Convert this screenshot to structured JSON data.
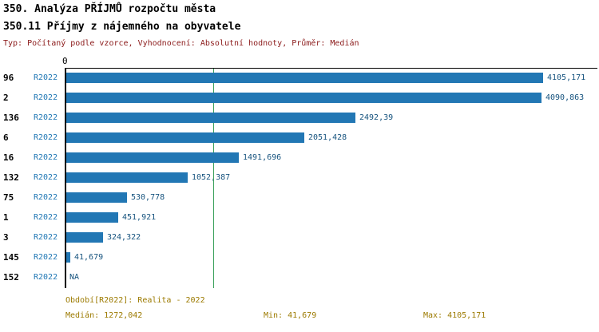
{
  "header": {
    "title1": "350. Analýza PŘÍJMŮ rozpočtu města",
    "title2": "350.11 Příjmy z nájemného na obyvatele",
    "meta": "Typ: Počítaný podle vzorce, Vyhodnocení: Absolutní hodnoty, Průměr: Medián"
  },
  "chart_data": {
    "type": "bar",
    "orientation": "horizontal",
    "title": "350.11 Příjmy z nájemného na obyvatele",
    "axis_zero_label": "0",
    "series_label": "R2022",
    "categories": [
      "96",
      "2",
      "136",
      "6",
      "16",
      "132",
      "75",
      "1",
      "3",
      "145",
      "152"
    ],
    "values": [
      4105.171,
      4090.863,
      2492.39,
      2051.428,
      1491.696,
      1052.387,
      530.778,
      451.921,
      324.322,
      41.679,
      null
    ],
    "value_labels": [
      "4105,171",
      "4090,863",
      "2492,39",
      "2051,428",
      "1491,696",
      "1052,387",
      "530,778",
      "451,921",
      "324,322",
      "41,679",
      "NA"
    ],
    "xlim": [
      0,
      4572
    ],
    "median_value": 1272.042,
    "min_value": 41.679,
    "max_value": 4105.171,
    "bar_color": "#2277b4",
    "median_line_color": "#3aa05a",
    "grid": false,
    "legend": "none"
  },
  "footer": {
    "period": "Období[R2022]: Realita - 2022",
    "median": "Medián: 1272,042",
    "min": "Min: 41,679",
    "max": "Max: 4105,171"
  }
}
